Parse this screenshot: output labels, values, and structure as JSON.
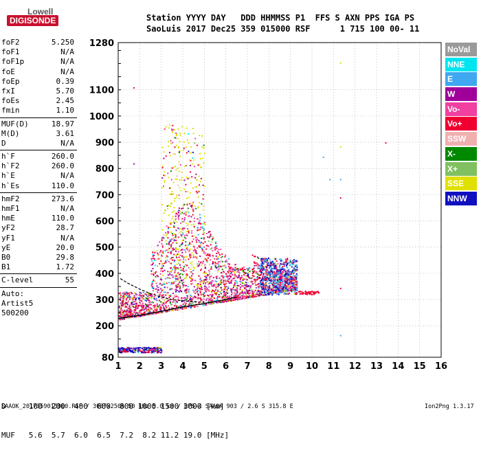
{
  "logo": {
    "top": "Lowell",
    "bottom": "DIGISONDE"
  },
  "header": {
    "row1": "Station YYYY DAY   DDD HHMMSS P1  FFS S AXN PPS IGA PS",
    "row2": "SaoLuis 2017 Dec25 359 015000 RSF      1 715 100 00- 11"
  },
  "params": [
    [
      {
        "k": "foF2",
        "v": "5.250"
      },
      {
        "k": "foF1",
        "v": "N/A"
      },
      {
        "k": "foF1p",
        "v": "N/A"
      },
      {
        "k": "foE",
        "v": "N/A"
      },
      {
        "k": "foEp",
        "v": "0.39"
      },
      {
        "k": "fxI",
        "v": "5.70"
      },
      {
        "k": "foEs",
        "v": "2.45"
      },
      {
        "k": "fmin",
        "v": "1.10"
      }
    ],
    [
      {
        "k": "MUF(D)",
        "v": "18.97"
      },
      {
        "k": "M(D)",
        "v": "3.61"
      },
      {
        "k": "D",
        "v": "N/A"
      }
    ],
    [
      {
        "k": "h`F",
        "v": "260.0"
      },
      {
        "k": "h`F2",
        "v": "260.0"
      },
      {
        "k": "h`E",
        "v": "N/A"
      },
      {
        "k": "h`Es",
        "v": "110.0"
      }
    ],
    [
      {
        "k": "hmF2",
        "v": "273.6"
      },
      {
        "k": "hmF1",
        "v": "N/A"
      },
      {
        "k": "hmE",
        "v": "110.0"
      },
      {
        "k": "yF2",
        "v": "28.7"
      },
      {
        "k": "yF1",
        "v": "N/A"
      },
      {
        "k": "yE",
        "v": "20.0"
      },
      {
        "k": "B0",
        "v": "29.8"
      },
      {
        "k": "B1",
        "v": "1.72"
      }
    ],
    [
      {
        "k": "C-level",
        "v": "55"
      }
    ]
  ],
  "auto": {
    "label": "Auto:",
    "artist": "Artist5",
    "version": "500200"
  },
  "legend": [
    {
      "label": "NoVal",
      "color": "#9a9a9a"
    },
    {
      "label": "NNE",
      "color": "#00e5f0"
    },
    {
      "label": "E",
      "color": "#3fa8f0"
    },
    {
      "label": "W",
      "color": "#a0009a"
    },
    {
      "label": "Vo-",
      "color": "#f040a0"
    },
    {
      "label": "Vo+",
      "color": "#f00030"
    },
    {
      "label": "SSW",
      "color": "#f0b0b0"
    },
    {
      "label": "X-",
      "color": "#008800"
    },
    {
      "label": "X+",
      "color": "#80c060"
    },
    {
      "label": "SSE",
      "color": "#e0e000"
    },
    {
      "label": "NNW",
      "color": "#1010c0"
    }
  ],
  "bottom": {
    "d_row": "D     100  200  400  600  800 1000 1500 3000 [km]",
    "muf_row": "MUF   5.6  5.7  6.0  6.5  7.2  8.2 11.2 19.0 [MHz]"
  },
  "footer": "SAAOK_2017359015000.RSF / 300fx256h 50 kHz 5.0 km / DPS-4 SAAOK 903 / 2.6 S 315.8 E",
  "software": "Ion2Png 1.3.17",
  "chart_data": {
    "type": "scatter",
    "x_ticks": [
      1,
      2,
      3,
      4,
      5,
      6,
      7,
      8,
      9,
      10,
      11,
      12,
      13,
      14,
      15,
      16
    ],
    "y_ticks": [
      80,
      200,
      300,
      400,
      500,
      600,
      700,
      800,
      900,
      1000,
      1100,
      1280
    ],
    "xlim": [
      1,
      16
    ],
    "ylim": [
      80,
      1280
    ],
    "grid": true,
    "trace_upper": [
      [
        1.1,
        380
      ],
      [
        1.5,
        360
      ],
      [
        2.0,
        340
      ],
      [
        2.5,
        322
      ],
      [
        3.0,
        310
      ],
      [
        3.5,
        300
      ],
      [
        4.0,
        295
      ],
      [
        4.5,
        292
      ],
      [
        5.0,
        290
      ]
    ],
    "trace_lower": [
      [
        1.0,
        228
      ],
      [
        2.0,
        240
      ],
      [
        3.0,
        255
      ],
      [
        4.0,
        272
      ],
      [
        5.0,
        285
      ],
      [
        6.0,
        300
      ],
      [
        6.5,
        310
      ]
    ],
    "es_band": {
      "x": [
        1.0,
        3.0
      ],
      "y": [
        100,
        120
      ]
    },
    "sparse_points": [
      {
        "x": 11.3,
        "y": 1205,
        "color": "#e0e000"
      },
      {
        "x": 13.4,
        "y": 900,
        "color": "#f00030"
      },
      {
        "x": 11.3,
        "y": 885,
        "color": "#e0e000"
      },
      {
        "x": 10.5,
        "y": 845,
        "color": "#3fa8f0"
      },
      {
        "x": 10.8,
        "y": 760,
        "color": "#3fa8f0"
      },
      {
        "x": 11.3,
        "y": 760,
        "color": "#3fa8f0"
      },
      {
        "x": 11.3,
        "y": 690,
        "color": "#f00030"
      },
      {
        "x": 11.3,
        "y": 345,
        "color": "#f00030"
      },
      {
        "x": 11.3,
        "y": 165,
        "color": "#3fa8f0"
      },
      {
        "x": 1.7,
        "y": 1110,
        "color": "#f00030"
      },
      {
        "x": 1.7,
        "y": 820,
        "color": "#a0009a"
      }
    ]
  }
}
